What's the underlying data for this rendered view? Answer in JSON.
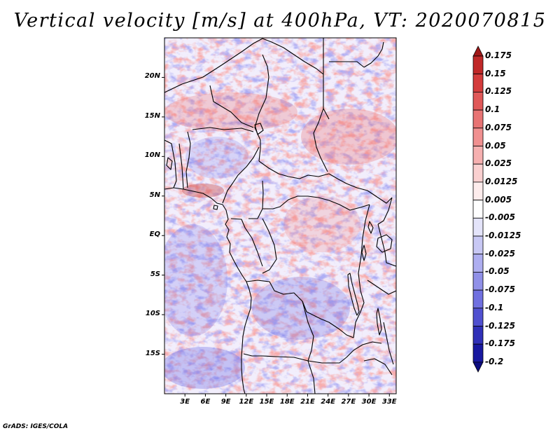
{
  "map": {
    "title": "Vertical velocity [m/s] at 400hPa, VT: 2020070815",
    "variable": "Vertical velocity",
    "units": "m/s",
    "level": "400hPa",
    "valid_time": "2020070815",
    "extent_deg": {
      "lon_min": 0,
      "lon_max": 34,
      "lat_min": -20,
      "lat_max": 25
    },
    "lat_ticks": [
      {
        "deg": 20,
        "label": "20N"
      },
      {
        "deg": 15,
        "label": "15N"
      },
      {
        "deg": 10,
        "label": "10N"
      },
      {
        "deg": 5,
        "label": "5N"
      },
      {
        "deg": 0,
        "label": "EQ"
      },
      {
        "deg": -5,
        "label": "5S"
      },
      {
        "deg": -10,
        "label": "10S"
      },
      {
        "deg": -15,
        "label": "15S"
      }
    ],
    "lon_ticks": [
      {
        "deg": 3,
        "label": "3E"
      },
      {
        "deg": 6,
        "label": "6E"
      },
      {
        "deg": 9,
        "label": "9E"
      },
      {
        "deg": 12,
        "label": "12E"
      },
      {
        "deg": 15,
        "label": "15E"
      },
      {
        "deg": 18,
        "label": "18E"
      },
      {
        "deg": 21,
        "label": "21E"
      },
      {
        "deg": 24,
        "label": "24E"
      },
      {
        "deg": 27,
        "label": "27E"
      },
      {
        "deg": 30,
        "label": "30E"
      },
      {
        "deg": 33,
        "label": "33E"
      }
    ],
    "credit": "GrADS: IGES/COLA"
  },
  "colorbar": {
    "labels": [
      "0.175",
      "0.15",
      "0.125",
      "0.1",
      "0.075",
      "0.05",
      "0.025",
      "0.0125",
      "0.005",
      "-0.005",
      "-0.0125",
      "-0.025",
      "-0.05",
      "-0.075",
      "-0.1",
      "-0.125",
      "-0.175",
      "-0.2"
    ],
    "colors": [
      "#a01818",
      "#c02828",
      "#d43c3c",
      "#e05858",
      "#e87474",
      "#f09090",
      "#f6b0b0",
      "#fad0d0",
      "#fdecec",
      "#ffffff",
      "#e4e4fa",
      "#c8c8f4",
      "#aeaef0",
      "#9090e8",
      "#7070e0",
      "#5050d0",
      "#3030b8",
      "#1818a0",
      "#0c0c80"
    ]
  },
  "style": {
    "positive_color": "#e06060",
    "negative_color": "#6a6ae6",
    "border_color": "#000000"
  }
}
